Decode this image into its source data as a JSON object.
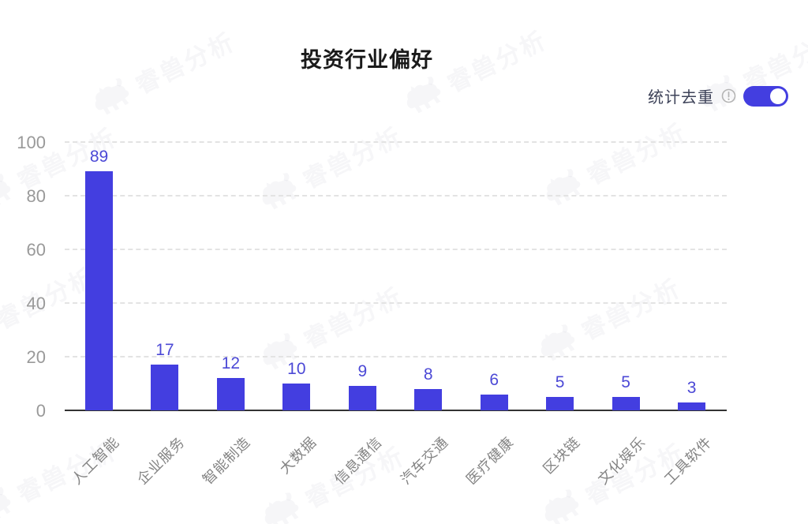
{
  "page": {
    "title": "投资行业偏好"
  },
  "controls": {
    "dedupe_toggle": {
      "label": "统计去重",
      "state": "on",
      "info_icon": "info-circle-icon",
      "switch_icon": "toggle-on-icon"
    }
  },
  "watermark": {
    "icon": "beast-icon",
    "text": "睿兽分析"
  },
  "chart_data": {
    "type": "bar",
    "title": "投资行业偏好",
    "categories": [
      "人工智能",
      "企业服务",
      "智能制造",
      "大数据",
      "信息通信",
      "汽车交通",
      "医疗健康",
      "区块链",
      "文化娱乐",
      "工具软件"
    ],
    "values": [
      89,
      17,
      12,
      10,
      9,
      8,
      6,
      5,
      5,
      3
    ],
    "xlabel": "",
    "ylabel": "",
    "ylim": [
      0,
      100
    ],
    "yticks": [
      0,
      20,
      40,
      60,
      80,
      100
    ],
    "grid": "horizontal-dashed",
    "legend": "none",
    "bar_labels": true,
    "colors": {
      "accent": "#433EE0",
      "bar": "#433EE0",
      "value_label": "#4C49D6",
      "axis_line": "#333333",
      "tick_label": "#999999",
      "category_label": "#848484",
      "gridline": "#E3E3E3",
      "toggle_on": "#433EE0",
      "title_text": "#1A1A1A",
      "toggle_text": "#3E4359"
    }
  }
}
